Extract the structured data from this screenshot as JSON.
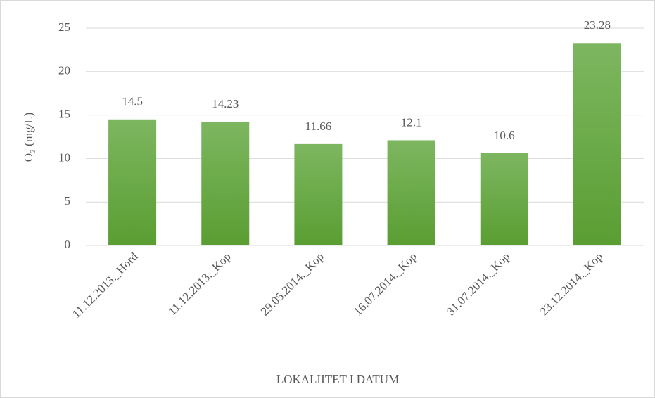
{
  "chart_data": {
    "type": "bar",
    "x_label": "LOKALIITET I DATUM",
    "y_label": "O₂ (mg/L)",
    "categories": [
      "11.12.2013._Hord",
      "11.12.2013._Kop",
      "29.05.2014._Kop",
      "16.07.2014._Kop",
      "31.07.2014._Kop",
      "23.12.2014._Kop"
    ],
    "values": [
      14.5,
      14.23,
      11.66,
      12.1,
      10.6,
      23.28
    ],
    "color": "#70ad47",
    "ylim": [
      0,
      25
    ],
    "yticks": [
      0,
      5,
      10,
      15,
      20,
      25
    ],
    "grid": true
  }
}
